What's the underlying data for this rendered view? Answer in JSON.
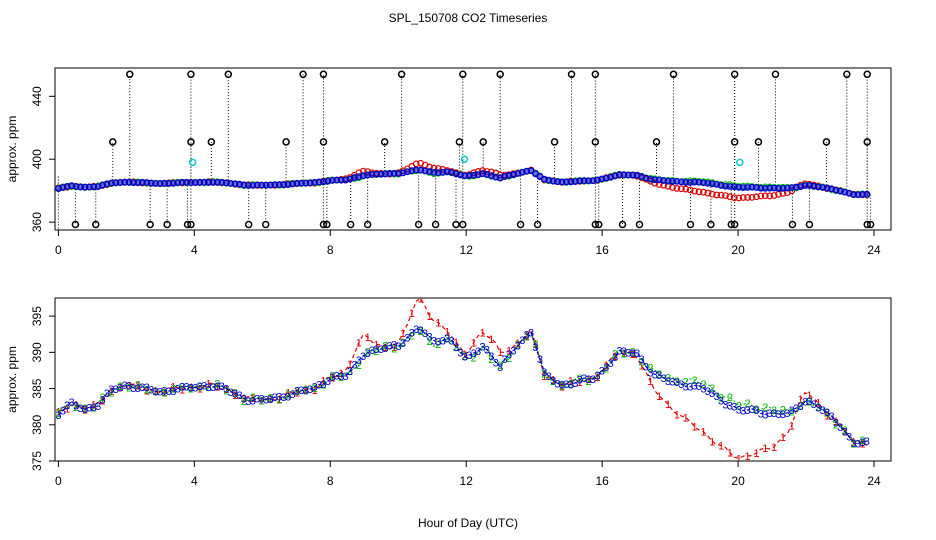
{
  "chart_data": {
    "type": "scatter",
    "title": "SPL_150708  CO2 Timeseries",
    "xlabel": "Hour of Day (UTC)",
    "panels": [
      {
        "name": "top",
        "ylabel": "approx. ppm",
        "xlim": [
          -0.1,
          24.5
        ],
        "ylim": [
          355,
          458
        ],
        "xticks": [
          0,
          4,
          8,
          12,
          16,
          20,
          24
        ],
        "yticks": [
          360,
          400,
          440
        ],
        "spikes_high": [
          2.1,
          3.9,
          5.0,
          7.2,
          7.8,
          10.1,
          11.9,
          13.0,
          15.1,
          15.8,
          18.1,
          19.9,
          21.1,
          23.2,
          23.8
        ],
        "spikes_mid": [
          1.6,
          3.9,
          4.5,
          6.7,
          7.8,
          9.6,
          11.8,
          12.5,
          14.6,
          15.8,
          17.6,
          19.9,
          20.6,
          22.6,
          23.8
        ],
        "spikes_low": [
          0.5,
          1.1,
          2.7,
          3.2,
          3.8,
          3.9,
          5.6,
          6.1,
          7.8,
          7.9,
          8.6,
          9.1,
          10.6,
          11.1,
          11.7,
          11.9,
          13.6,
          14.1,
          15.8,
          15.9,
          16.6,
          17.1,
          18.6,
          19.2,
          19.8,
          19.9,
          21.6,
          22.1,
          23.8,
          23.9
        ],
        "cyan_points": [
          [
            3.95,
            398
          ],
          [
            11.95,
            400
          ],
          [
            20.05,
            398
          ]
        ]
      },
      {
        "name": "bottom",
        "ylabel": "approx. ppm",
        "xlim": [
          -0.1,
          24.5
        ],
        "ylim": [
          375,
          397.5
        ],
        "xticks": [
          0,
          4,
          8,
          12,
          16,
          20,
          24
        ],
        "yticks": [
          375,
          380,
          385,
          390,
          395
        ]
      }
    ],
    "series": [
      {
        "name": "1",
        "symbol": "1",
        "color": "#dd0000",
        "offset_scale": 1.0
      },
      {
        "name": "2",
        "symbol": "2",
        "color": "#00bb00",
        "offset_scale": -0.45
      },
      {
        "name": "3",
        "symbol": "3",
        "color": "#0000cc",
        "offset_scale": 0.15
      }
    ],
    "base_curve": [
      [
        0.0,
        381.5
      ],
      [
        0.4,
        383.0
      ],
      [
        0.8,
        382.2
      ],
      [
        1.2,
        382.8
      ],
      [
        1.6,
        385.0
      ],
      [
        2.0,
        385.5
      ],
      [
        2.5,
        385.0
      ],
      [
        3.0,
        384.6
      ],
      [
        3.5,
        385.0
      ],
      [
        4.0,
        385.2
      ],
      [
        4.5,
        385.5
      ],
      [
        5.0,
        384.8
      ],
      [
        5.5,
        383.6
      ],
      [
        6.0,
        383.4
      ],
      [
        6.5,
        383.8
      ],
      [
        7.0,
        384.5
      ],
      [
        7.5,
        385.0
      ],
      [
        8.0,
        386.5
      ],
      [
        8.5,
        386.8
      ],
      [
        9.0,
        390.0
      ],
      [
        9.5,
        390.5
      ],
      [
        10.0,
        391.0
      ],
      [
        10.6,
        393.5
      ],
      [
        11.0,
        391.5
      ],
      [
        11.5,
        392.0
      ],
      [
        12.0,
        389.0
      ],
      [
        12.5,
        391.0
      ],
      [
        13.0,
        388.0
      ],
      [
        13.5,
        391.0
      ],
      [
        13.9,
        393.0
      ],
      [
        14.3,
        387.0
      ],
      [
        14.8,
        385.5
      ],
      [
        15.3,
        386.0
      ],
      [
        15.8,
        386.5
      ],
      [
        16.2,
        388.5
      ],
      [
        16.5,
        390.0
      ],
      [
        17.0,
        390.0
      ],
      [
        17.5,
        387.0
      ],
      [
        18.0,
        386.0
      ],
      [
        18.5,
        385.5
      ],
      [
        19.0,
        385.0
      ],
      [
        19.5,
        383.5
      ],
      [
        20.0,
        382.0
      ],
      [
        20.5,
        382.0
      ],
      [
        21.0,
        381.5
      ],
      [
        21.5,
        381.5
      ],
      [
        22.0,
        383.5
      ],
      [
        22.5,
        382.0
      ],
      [
        23.0,
        380.0
      ],
      [
        23.4,
        377.5
      ],
      [
        23.8,
        377.5
      ]
    ],
    "red_deviation": [
      [
        8.9,
        2.5
      ],
      [
        10.6,
        3.5
      ],
      [
        11.1,
        2.0
      ],
      [
        12.3,
        1.5
      ],
      [
        12.9,
        2.0
      ],
      [
        17.5,
        -1.5
      ],
      [
        18.0,
        -2.5
      ],
      [
        18.5,
        -3.5
      ],
      [
        19.0,
        -4.5
      ],
      [
        19.5,
        -4.5
      ],
      [
        20.0,
        -5.0
      ],
      [
        20.5,
        -4.0
      ],
      [
        21.0,
        -3.5
      ],
      [
        21.5,
        -2.0
      ],
      [
        21.9,
        1.5
      ]
    ]
  }
}
